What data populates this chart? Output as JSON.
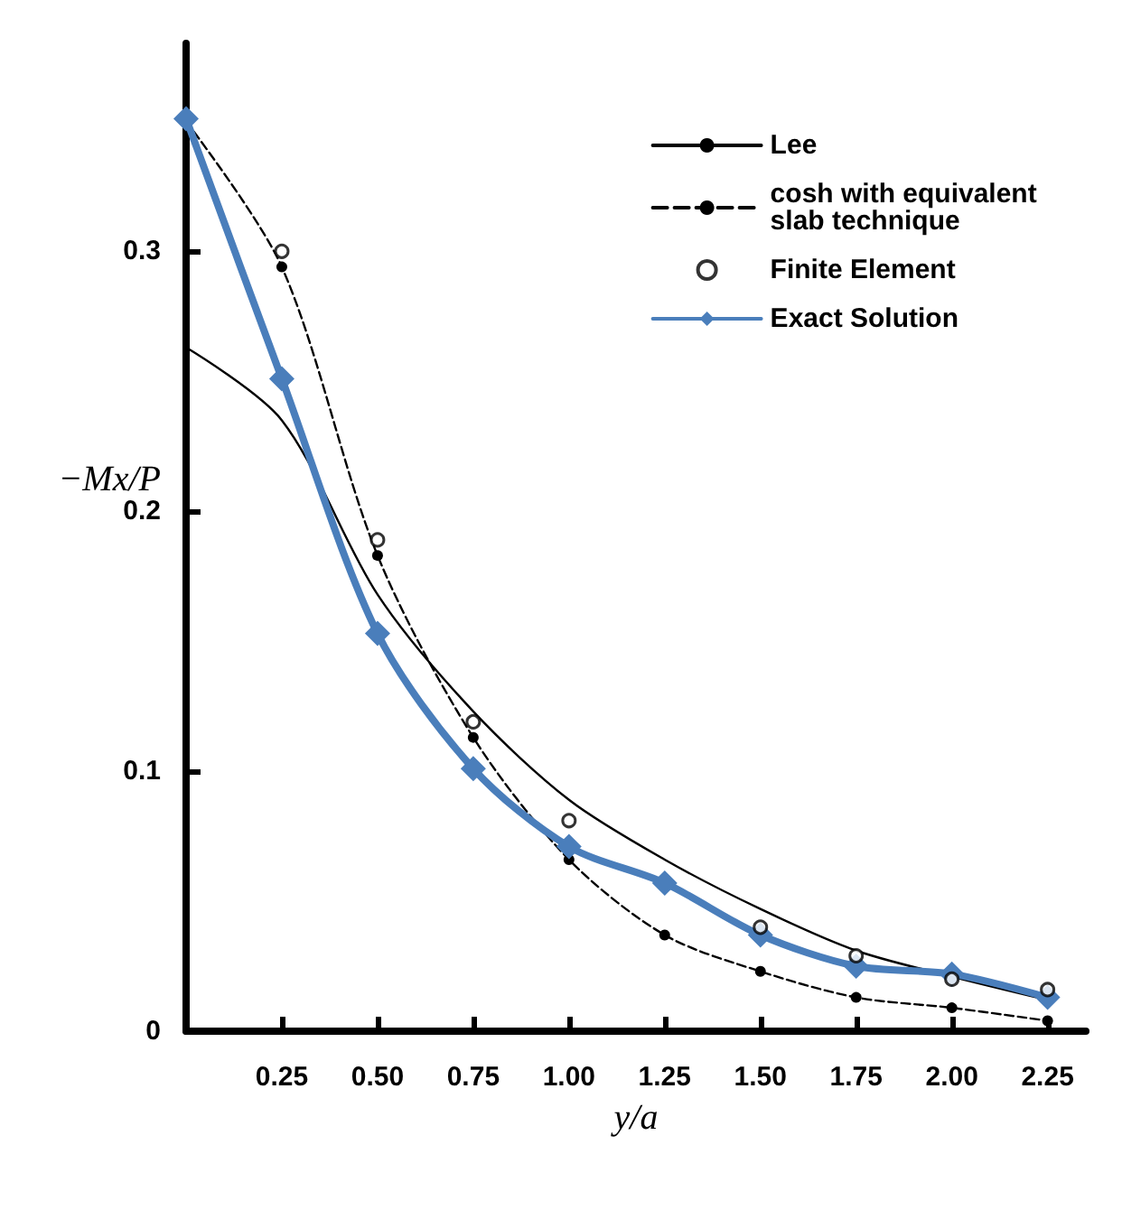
{
  "chart_data": {
    "type": "line",
    "xlabel": "y/a",
    "ylabel": "−Mx/P",
    "xlim": [
      0,
      2.35
    ],
    "ylim": [
      0,
      0.38
    ],
    "xticks": [
      0.25,
      {
        "value": 0.5,
        "label": "0.50"
      },
      0.75,
      {
        "value": 1,
        "label": "1.00"
      },
      1.25,
      {
        "value": 1.5,
        "label": "1.50"
      },
      1.75,
      {
        "value": 2,
        "label": "2.00"
      },
      2.25
    ],
    "yticks": [
      0,
      0.1,
      0.2,
      0.3
    ],
    "grid": false,
    "legend": "top right",
    "x": [
      0,
      0.25,
      0.5,
      0.75,
      1,
      1.25,
      1.5,
      1.75,
      2,
      2.25
    ],
    "series": [
      {
        "name": "Lee",
        "color": "#000000",
        "marker": "none",
        "line_style": "solid",
        "values": [
          0.263,
          0.235,
          0.168,
          0.123,
          0.089,
          0.066,
          0.047,
          0.031,
          0.021,
          0.012
        ]
      },
      {
        "name": "cosh with equivalent slab technique",
        "color": "#000000",
        "marker": "circle",
        "line_style": "dashed",
        "values": [
          0.35,
          0.294,
          0.183,
          0.113,
          0.066,
          0.037,
          0.023,
          0.013,
          0.009,
          0.004
        ]
      },
      {
        "name": "Finite Element",
        "type": "scatter",
        "color": "#000000",
        "marker": "circle",
        "x": [
          0.25,
          0.5,
          0.75,
          1,
          1.5,
          1.75,
          2,
          2.25
        ],
        "values": [
          0.3,
          0.189,
          0.119,
          0.081,
          0.04,
          0.029,
          0.02,
          0.016
        ]
      },
      {
        "name": "Exact Solution",
        "color": "#4a7ebb",
        "marker": "diamond",
        "line_style": "solid",
        "values": [
          0.351,
          0.251,
          0.153,
          0.101,
          0.071,
          0.057,
          0.037,
          0.025,
          0.022,
          0.013
        ]
      }
    ]
  }
}
